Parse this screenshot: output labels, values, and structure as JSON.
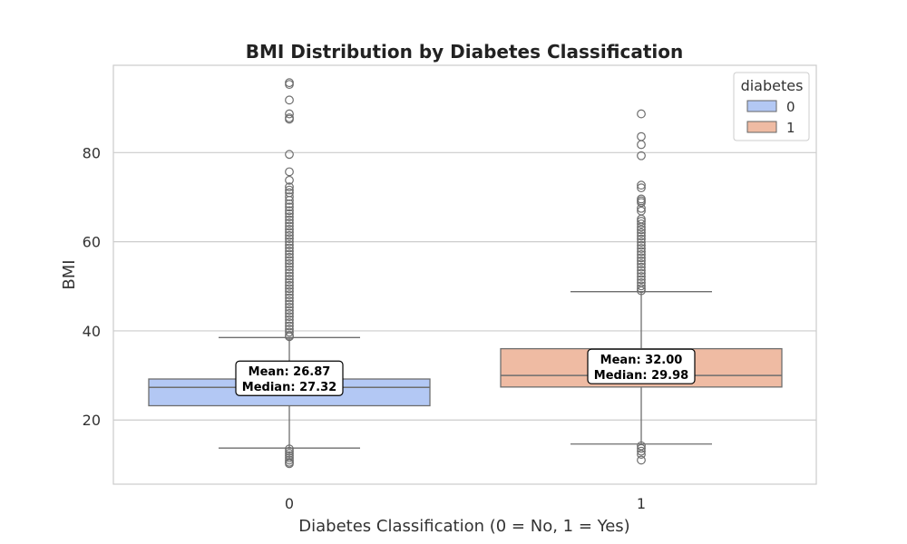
{
  "chart_data": {
    "type": "box",
    "title": "BMI Distribution by Diabetes Classification",
    "xlabel": "Diabetes Classification (0 = No, 1 = Yes)",
    "ylabel": "BMI",
    "categories": [
      "0",
      "1"
    ],
    "ylim": [
      5.6,
      99.6
    ],
    "yticks": [
      20,
      40,
      60,
      80
    ],
    "grid": true,
    "legend": {
      "title": "diabetes",
      "position": "top-right",
      "entries": [
        {
          "label": "0",
          "color": "#b3c8f4"
        },
        {
          "label": "1",
          "color": "#efbba3"
        }
      ]
    },
    "series": [
      {
        "category": "0",
        "color": "#b3c8f4",
        "whisker_low": 13.7,
        "q1": 23.2,
        "median": 27.32,
        "q3": 29.2,
        "whisker_high": 38.5,
        "mean": 26.87,
        "annotation": {
          "mean": "Mean: 26.87",
          "median": "Median: 27.32"
        },
        "outliers": [
          95.7,
          95.3,
          91.8,
          88.7,
          87.8,
          87.5,
          79.6,
          75.7,
          73.8,
          72.3,
          71.6,
          71.0,
          70.1,
          69.3,
          68.5,
          67.8,
          67.0,
          66.3,
          65.6,
          64.9,
          64.2,
          63.5,
          62.8,
          62.1,
          61.4,
          60.7,
          60.0,
          59.3,
          58.6,
          57.9,
          57.2,
          56.5,
          55.8,
          55.1,
          54.4,
          53.7,
          53.0,
          52.3,
          51.6,
          50.9,
          50.2,
          49.5,
          48.8,
          48.1,
          47.4,
          46.7,
          46.0,
          45.3,
          44.6,
          43.9,
          43.2,
          42.5,
          41.8,
          41.1,
          40.4,
          39.7,
          39.0,
          38.7,
          13.5,
          13.0,
          12.5,
          12.0,
          11.5,
          11.0,
          10.5,
          10.2
        ]
      },
      {
        "category": "1",
        "color": "#efbba3",
        "whisker_low": 14.6,
        "q1": 27.4,
        "median": 29.98,
        "q3": 36.0,
        "whisker_high": 48.8,
        "mean": 32.0,
        "annotation": {
          "mean": "Mean: 32.00",
          "median": "Median: 29.98"
        },
        "outliers": [
          88.7,
          83.6,
          81.8,
          79.3,
          72.7,
          72.1,
          69.6,
          69.2,
          68.8,
          67.5,
          66.9,
          65.1,
          64.6,
          64.0,
          63.3,
          62.7,
          62.0,
          61.3,
          60.6,
          59.9,
          59.2,
          58.5,
          57.8,
          57.1,
          56.4,
          55.7,
          55.0,
          54.3,
          53.6,
          52.9,
          52.2,
          51.5,
          50.8,
          50.1,
          49.5,
          49.0,
          14.2,
          13.6,
          13.0,
          12.3,
          11.0
        ]
      }
    ]
  }
}
